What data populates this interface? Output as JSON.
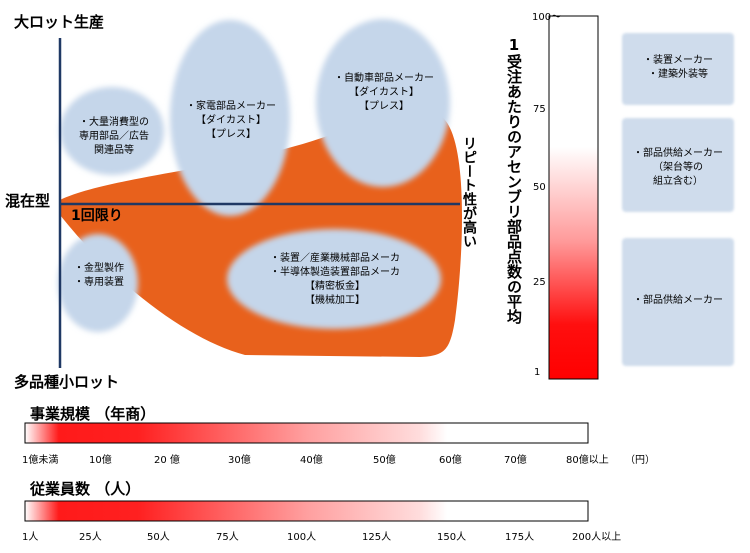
{
  "axes": {
    "top": "大ロット生産",
    "bottom": "多品種小ロット",
    "left": "混在型",
    "origin": "1回限り",
    "right": "リピート性が高い"
  },
  "bubbles": [
    {
      "id": "consumer",
      "text": "・大量消費型の\n専用部品／広告\n関連品等"
    },
    {
      "id": "appliance",
      "text": "・家電部品メーカー\n【ダイカスト】\n【プレス】"
    },
    {
      "id": "auto",
      "text": "・自動車部品メーカー\n【ダイカスト】\n【プレス】"
    },
    {
      "id": "industrial",
      "text": "・装置／産業機械部品メーカ\n・半導体製造装置部品メーカ\n【精密板金】\n【機械加工】"
    },
    {
      "id": "mold",
      "text": "・金型製作\n・専用装置"
    }
  ],
  "vertical_scale": {
    "title": "1受注あたりのアセンブリ部品点数の平均",
    "ticks": [
      "100〜",
      "75",
      "50",
      "25",
      "1"
    ]
  },
  "side_boxes": [
    {
      "text": "・装置メーカー\n・建築外装等"
    },
    {
      "text": "・部品供給メーカー\n（架台等の\n組立含む）"
    },
    {
      "text": "・部品供給メーカー"
    }
  ],
  "scale_revenue": {
    "title": "事業規模 （年商）",
    "ticks": [
      "1億未満",
      "10億",
      "20 億",
      "30億",
      "40億",
      "50億",
      "60億",
      "70億",
      "80億以上",
      "（円）"
    ]
  },
  "scale_employees": {
    "title": "従業員数 （人）",
    "ticks": [
      "1人",
      "25人",
      "50人",
      "75人",
      "100人",
      "125人",
      "150人",
      "175人",
      "200人以上"
    ]
  },
  "colors": {
    "orange": "#e8611c",
    "bubble": "#c5d6ea",
    "axis": "#1f3864",
    "red": "#ff0000"
  }
}
